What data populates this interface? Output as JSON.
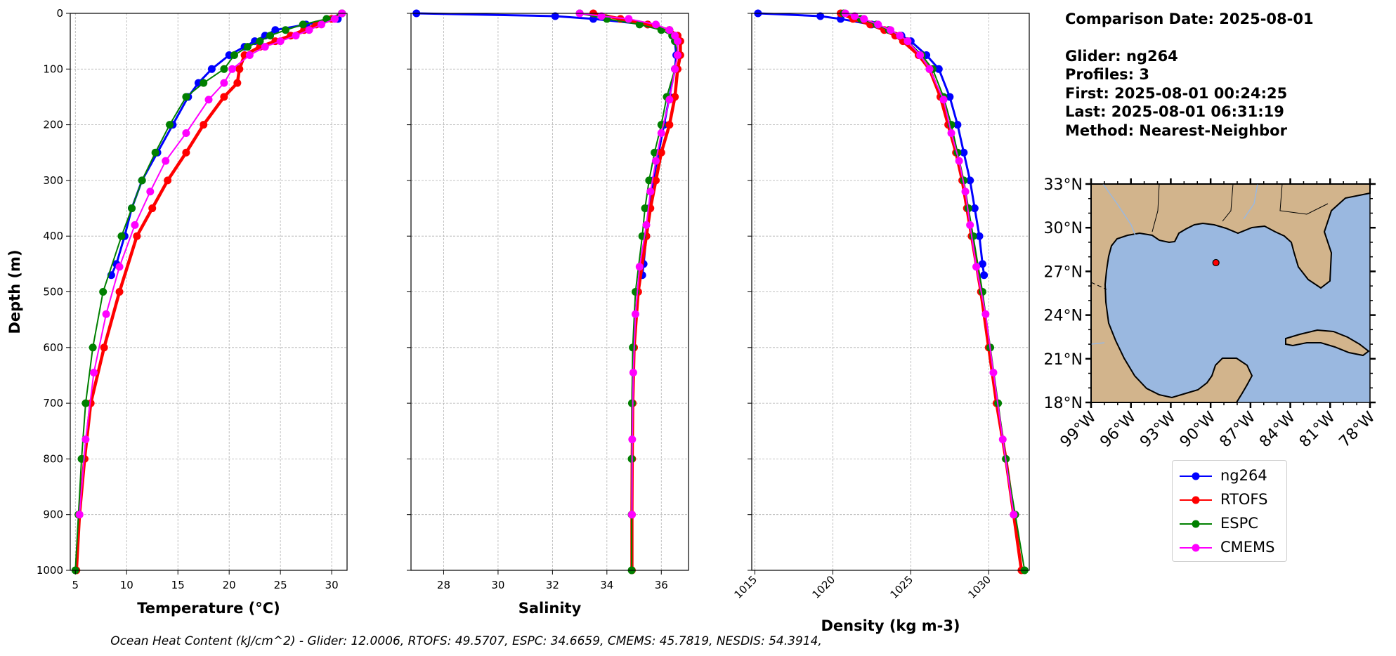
{
  "info": {
    "comparison_date": "Comparison Date: 2025-08-01",
    "glider": "Glider: ng264",
    "profiles": "Profiles: 3",
    "first": "First: 2025-08-01 00:24:25",
    "last": "Last: 2025-08-01 06:31:19",
    "method": "Method: Nearest-Neighbor"
  },
  "caption": "Ocean Heat Content (kJ/cm^2) - Glider: 12.0006,  RTOFS: 49.5707,  ESPC: 34.6659,  CMEMS: 45.7819,  NESDIS: 54.3914,",
  "legend": [
    {
      "name": "ng264",
      "color": "#0000ff"
    },
    {
      "name": "RTOFS",
      "color": "#ff0000"
    },
    {
      "name": "ESPC",
      "color": "#008000"
    },
    {
      "name": "CMEMS",
      "color": "#ff00ff"
    }
  ],
  "chart_data": [
    {
      "type": "line",
      "xlabel": "Temperature (°C)",
      "ylabel": "Depth (m)",
      "xlim": [
        4.5,
        31.5
      ],
      "ylim": [
        1000,
        0
      ],
      "xticks": [
        5,
        10,
        15,
        20,
        25,
        30
      ],
      "yticks": [
        0,
        100,
        200,
        300,
        400,
        500,
        600,
        700,
        800,
        900,
        1000
      ],
      "grid": true,
      "series": [
        {
          "name": "ng264",
          "color": "#0000ff",
          "depth": [
            0,
            10,
            20,
            30,
            40,
            50,
            60,
            75,
            100,
            125,
            150,
            200,
            250,
            300,
            350,
            400,
            450,
            470
          ],
          "values": [
            31.0,
            30.6,
            27.5,
            24.5,
            23.5,
            22.5,
            21.5,
            20.0,
            18.3,
            17.0,
            16.0,
            14.5,
            13.0,
            11.5,
            10.5,
            9.8,
            9.0,
            8.5
          ]
        },
        {
          "name": "RTOFS",
          "color": "#ff0000",
          "depth": [
            0,
            10,
            20,
            30,
            40,
            50,
            60,
            75,
            100,
            125,
            150,
            200,
            250,
            300,
            350,
            400,
            500,
            600,
            700,
            800,
            900,
            1000
          ],
          "values": [
            31.0,
            30.0,
            28.5,
            27.3,
            26.0,
            24.5,
            23.0,
            21.5,
            21.0,
            20.8,
            19.5,
            17.5,
            15.8,
            14.0,
            12.5,
            11.0,
            9.3,
            7.8,
            6.5,
            5.9,
            5.4,
            5.1
          ]
        },
        {
          "name": "ESPC",
          "color": "#008000",
          "depth": [
            0,
            10,
            20,
            30,
            40,
            50,
            60,
            75,
            100,
            125,
            150,
            200,
            250,
            300,
            350,
            400,
            500,
            600,
            700,
            800,
            900,
            1000
          ],
          "values": [
            31.0,
            29.5,
            27.2,
            25.5,
            24.0,
            23.0,
            21.8,
            20.5,
            19.5,
            17.5,
            15.8,
            14.2,
            12.8,
            11.5,
            10.5,
            9.5,
            7.7,
            6.7,
            6.0,
            5.6,
            5.3,
            5.0
          ]
        },
        {
          "name": "CMEMS",
          "color": "#ff00ff",
          "depth": [
            0,
            10,
            20,
            30,
            40,
            50,
            60,
            75,
            100,
            125,
            155,
            215,
            265,
            320,
            380,
            455,
            540,
            645,
            765,
            900
          ],
          "values": [
            31.0,
            30.3,
            29.0,
            27.8,
            26.5,
            25.0,
            23.5,
            22.0,
            20.3,
            19.5,
            18.0,
            15.8,
            13.8,
            12.3,
            10.8,
            9.3,
            8.0,
            6.8,
            6.0,
            5.4
          ]
        }
      ]
    },
    {
      "type": "line",
      "xlabel": "Salinity",
      "ylabel": "",
      "xlim": [
        26.8,
        37.0
      ],
      "ylim": [
        1000,
        0
      ],
      "xticks": [
        28,
        30,
        32,
        34,
        36
      ],
      "yticks": [
        0,
        100,
        200,
        300,
        400,
        500,
        600,
        700,
        800,
        900,
        1000
      ],
      "grid": true,
      "series": [
        {
          "name": "ng264",
          "color": "#0000ff",
          "depth": [
            0,
            5,
            10,
            20,
            30,
            40,
            50,
            75,
            100,
            150,
            200,
            250,
            300,
            350,
            400,
            450,
            470
          ],
          "values": [
            27.0,
            32.1,
            33.5,
            35.5,
            36.3,
            36.5,
            36.5,
            36.55,
            36.5,
            36.3,
            36.1,
            35.9,
            35.7,
            35.55,
            35.45,
            35.35,
            35.3
          ]
        },
        {
          "name": "RTOFS",
          "color": "#ff0000",
          "depth": [
            0,
            10,
            20,
            30,
            40,
            50,
            75,
            100,
            150,
            200,
            250,
            300,
            350,
            400,
            500,
            600,
            700,
            800,
            900,
            1000
          ],
          "values": [
            33.5,
            34.5,
            35.5,
            36.3,
            36.6,
            36.7,
            36.7,
            36.6,
            36.5,
            36.3,
            36.0,
            35.8,
            35.6,
            35.45,
            35.15,
            35.0,
            34.95,
            34.93,
            34.92,
            34.92
          ]
        },
        {
          "name": "ESPC",
          "color": "#008000",
          "depth": [
            0,
            10,
            20,
            30,
            40,
            50,
            75,
            100,
            150,
            200,
            250,
            300,
            350,
            400,
            500,
            600,
            700,
            800,
            900,
            1000
          ],
          "values": [
            33.0,
            34.0,
            35.2,
            36.0,
            36.4,
            36.5,
            36.6,
            36.5,
            36.2,
            36.0,
            35.75,
            35.55,
            35.4,
            35.3,
            35.05,
            34.95,
            34.92,
            34.91,
            34.91,
            34.91
          ]
        },
        {
          "name": "CMEMS",
          "color": "#ff00ff",
          "depth": [
            0,
            5,
            10,
            20,
            30,
            40,
            50,
            75,
            100,
            155,
            215,
            265,
            320,
            380,
            455,
            540,
            645,
            765,
            900
          ],
          "values": [
            33.0,
            33.8,
            34.8,
            35.8,
            36.3,
            36.5,
            36.6,
            36.6,
            36.5,
            36.3,
            36.0,
            35.8,
            35.6,
            35.45,
            35.2,
            35.05,
            34.97,
            34.93,
            34.92
          ]
        }
      ]
    },
    {
      "type": "line",
      "xlabel": "Density (kg m-3)",
      "ylabel": "",
      "xlim": [
        1014.8,
        1032.6
      ],
      "ylim": [
        1000,
        0
      ],
      "xticks": [
        1015,
        1020,
        1025,
        1030
      ],
      "yticks": [
        0,
        100,
        200,
        300,
        400,
        500,
        600,
        700,
        800,
        900,
        1000
      ],
      "grid": true,
      "series": [
        {
          "name": "ng264",
          "color": "#0000ff",
          "depth": [
            0,
            5,
            10,
            20,
            30,
            40,
            50,
            75,
            100,
            150,
            200,
            250,
            300,
            350,
            400,
            450,
            470
          ],
          "values": [
            1015.2,
            1019.2,
            1020.5,
            1022.5,
            1023.6,
            1024.4,
            1025.0,
            1026.0,
            1026.8,
            1027.5,
            1028.0,
            1028.4,
            1028.8,
            1029.1,
            1029.4,
            1029.6,
            1029.7
          ]
        },
        {
          "name": "RTOFS",
          "color": "#ff0000",
          "depth": [
            0,
            10,
            20,
            30,
            40,
            50,
            75,
            100,
            150,
            200,
            250,
            300,
            350,
            400,
            500,
            600,
            700,
            800,
            900,
            1000
          ],
          "values": [
            1020.5,
            1021.3,
            1022.4,
            1023.3,
            1024.0,
            1024.5,
            1025.5,
            1026.2,
            1026.9,
            1027.4,
            1027.9,
            1028.3,
            1028.6,
            1028.9,
            1029.5,
            1030.0,
            1030.5,
            1031.1,
            1031.6,
            1032.1
          ]
        },
        {
          "name": "ESPC",
          "color": "#008000",
          "depth": [
            0,
            10,
            20,
            30,
            40,
            50,
            75,
            100,
            150,
            200,
            250,
            300,
            350,
            400,
            500,
            600,
            700,
            800,
            900,
            1000
          ],
          "values": [
            1020.7,
            1021.8,
            1022.8,
            1023.6,
            1024.3,
            1024.8,
            1025.7,
            1026.4,
            1027.1,
            1027.6,
            1028.0,
            1028.4,
            1028.7,
            1029.0,
            1029.6,
            1030.1,
            1030.6,
            1031.1,
            1031.7,
            1032.3
          ]
        },
        {
          "name": "CMEMS",
          "color": "#ff00ff",
          "depth": [
            0,
            5,
            10,
            20,
            30,
            40,
            50,
            75,
            100,
            155,
            215,
            265,
            320,
            380,
            455,
            540,
            645,
            765,
            900
          ],
          "values": [
            1020.8,
            1021.4,
            1022.0,
            1022.9,
            1023.7,
            1024.3,
            1024.8,
            1025.6,
            1026.2,
            1027.1,
            1027.6,
            1028.1,
            1028.5,
            1028.8,
            1029.2,
            1029.8,
            1030.3,
            1030.9,
            1031.6
          ]
        }
      ]
    }
  ],
  "map": {
    "lat_ticks": [
      "33°N",
      "30°N",
      "27°N",
      "24°N",
      "21°N",
      "18°N"
    ],
    "lon_ticks": [
      "99°W",
      "96°W",
      "93°W",
      "90°W",
      "87°W",
      "84°W",
      "81°W",
      "78°W"
    ],
    "lon_range": [
      -99,
      -78
    ],
    "lat_range": [
      18,
      33
    ],
    "glider_position": {
      "lon": -89.6,
      "lat": 27.6
    },
    "land_color": "#d2b48c",
    "water_color": "#9ab8e0"
  }
}
